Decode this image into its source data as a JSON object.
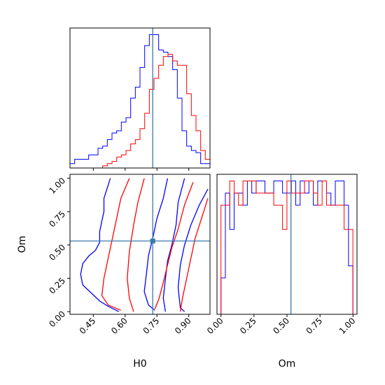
{
  "chart_data": {
    "type": "corner",
    "truth": {
      "H0": 0.73,
      "Om": 0.53
    },
    "colors": {
      "run_a": "#0000ff",
      "run_b": "#ff0000",
      "truth": "#3a7aaa"
    },
    "panels": [
      {
        "id": "hist-H0",
        "type": "histogram",
        "xlim": [
          0.34,
          1.0
        ],
        "xticks": [
          0.45,
          0.6,
          0.75,
          0.9
        ],
        "series": [
          {
            "color": "#0000ff",
            "bin_start": 0.34,
            "bin_width": 0.022,
            "counts": [
              2,
              4,
              4,
              4,
              6,
              6,
              9,
              10,
              13,
              16,
              17,
              21,
              23,
              32,
              37,
              46,
              56,
              61,
              61,
              54,
              53,
              51,
              45,
              32,
              17,
              10,
              8,
              7,
              2,
              2
            ]
          },
          {
            "color": "#ff0000",
            "bin_start": 0.34,
            "bin_width": 0.022,
            "counts": [
              0,
              0,
              0,
              0,
              0,
              0,
              0,
              1,
              2,
              3,
              5,
              6,
              8,
              11,
              13,
              18,
              25,
              36,
              41,
              47,
              51,
              52,
              49,
              47,
              47,
              34,
              24,
              17,
              8,
              4
            ]
          }
        ]
      },
      {
        "id": "hist-Om",
        "type": "histogram",
        "xlim": [
          -0.03,
          1.03
        ],
        "xticks": [
          0.0,
          0.25,
          0.5,
          0.75,
          1.0
        ],
        "xlabel": "Om",
        "series": [
          {
            "color": "#0000ff",
            "bin_start": 0.0,
            "bin_width": 0.0333,
            "counts": [
              3,
              10,
              7,
              10,
              10,
              9,
              11,
              10,
              11,
              11,
              10,
              10,
              11,
              11,
              10,
              10,
              11,
              9,
              11,
              10,
              11,
              9,
              11,
              11,
              10,
              9,
              11,
              11,
              9,
              4
            ]
          },
          {
            "color": "#ff0000",
            "bin_start": 0.0,
            "bin_width": 0.0333,
            "counts": [
              9,
              9,
              11,
              10,
              9,
              11,
              11,
              11,
              10,
              10,
              10,
              10,
              9,
              9,
              7,
              11,
              10,
              10,
              10,
              11,
              11,
              10,
              9,
              11,
              9,
              9,
              9,
              9,
              7,
              7
            ]
          }
        ]
      },
      {
        "id": "contour-H0-Om",
        "type": "contour",
        "xlim": [
          0.34,
          1.0
        ],
        "ylim": [
          -0.02,
          1.03
        ],
        "xticks": [
          0.45,
          0.6,
          0.75,
          0.9
        ],
        "yticks": [
          0.0,
          0.25,
          0.5,
          0.75,
          1.0
        ],
        "xlabel": "H0",
        "ylabel": "Om",
        "contours": [
          {
            "color": "#0000ff",
            "points": [
              [
                0.53,
                1.0
              ],
              [
                0.5,
                0.85
              ],
              [
                0.5,
                0.75
              ],
              [
                0.49,
                0.68
              ],
              [
                0.48,
                0.6
              ],
              [
                0.48,
                0.52
              ],
              [
                0.46,
                0.46
              ],
              [
                0.43,
                0.42
              ],
              [
                0.4,
                0.36
              ],
              [
                0.39,
                0.28
              ],
              [
                0.4,
                0.2
              ],
              [
                0.44,
                0.14
              ],
              [
                0.48,
                0.08
              ],
              [
                0.52,
                0.04
              ],
              [
                0.57,
                0.0
              ]
            ]
          },
          {
            "color": "#0000ff",
            "points": [
              [
                0.8,
                1.0
              ],
              [
                0.78,
                0.85
              ],
              [
                0.75,
                0.7
              ],
              [
                0.73,
                0.55
              ],
              [
                0.71,
                0.42
              ],
              [
                0.7,
                0.28
              ],
              [
                0.69,
                0.15
              ],
              [
                0.71,
                0.05
              ],
              [
                0.74,
                0.01
              ]
            ]
          },
          {
            "color": "#0000ff",
            "points": [
              [
                0.88,
                1.0
              ],
              [
                0.85,
                0.82
              ],
              [
                0.84,
                0.65
              ],
              [
                0.82,
                0.5
              ],
              [
                0.8,
                0.38
              ],
              [
                0.79,
                0.25
              ],
              [
                0.78,
                0.1
              ],
              [
                0.79,
                0.0
              ]
            ]
          },
          {
            "color": "#0000ff",
            "points": [
              [
                0.99,
                0.92
              ],
              [
                0.95,
                0.8
              ],
              [
                0.91,
                0.65
              ],
              [
                0.88,
                0.5
              ],
              [
                0.86,
                0.35
              ],
              [
                0.85,
                0.18
              ],
              [
                0.86,
                0.03
              ],
              [
                0.88,
                0.0
              ]
            ]
          },
          {
            "color": "#ff0000",
            "points": [
              [
                0.62,
                1.0
              ],
              [
                0.58,
                0.85
              ],
              [
                0.56,
                0.7
              ],
              [
                0.54,
                0.55
              ],
              [
                0.52,
                0.4
              ],
              [
                0.5,
                0.25
              ],
              [
                0.49,
                0.12
              ],
              [
                0.52,
                0.05
              ],
              [
                0.58,
                0.01
              ]
            ]
          },
          {
            "color": "#ff0000",
            "points": [
              [
                0.69,
                1.0
              ],
              [
                0.66,
                0.82
              ],
              [
                0.64,
                0.65
              ],
              [
                0.62,
                0.45
              ],
              [
                0.61,
                0.25
              ],
              [
                0.62,
                0.1
              ],
              [
                0.64,
                0.0
              ]
            ]
          },
          {
            "color": "#ff0000",
            "points": [
              [
                0.92,
                0.97
              ],
              [
                0.88,
                0.8
              ],
              [
                0.85,
                0.62
              ],
              [
                0.82,
                0.48
              ],
              [
                0.8,
                0.35
              ],
              [
                0.78,
                0.22
              ],
              [
                0.76,
                0.1
              ],
              [
                0.74,
                0.02
              ]
            ]
          },
          {
            "color": "#ff0000",
            "points": [
              [
                0.99,
                0.85
              ],
              [
                0.96,
                0.7
              ],
              [
                0.93,
                0.55
              ],
              [
                0.91,
                0.4
              ],
              [
                0.89,
                0.25
              ],
              [
                0.87,
                0.1
              ],
              [
                0.86,
                0.0
              ]
            ]
          }
        ]
      }
    ]
  }
}
